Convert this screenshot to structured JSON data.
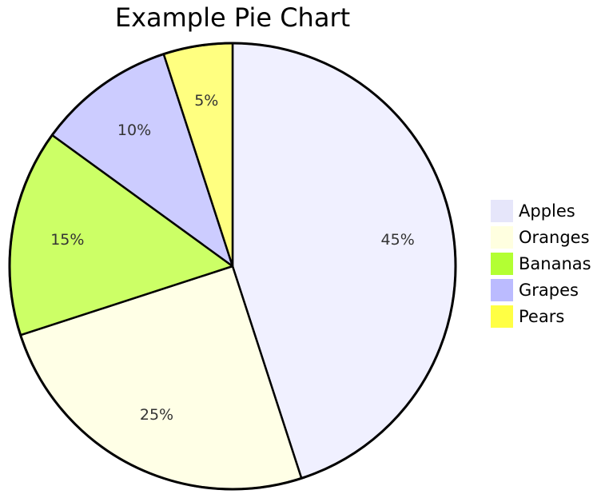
{
  "chart_data": {
    "type": "pie",
    "title": "Example Pie Chart",
    "slices": [
      {
        "label": "Apples",
        "value": 45,
        "display": "45%",
        "color": "#f0f0ff"
      },
      {
        "label": "Oranges",
        "value": 25,
        "display": "25%",
        "color": "#ffffe6"
      },
      {
        "label": "Bananas",
        "value": 15,
        "display": "15%",
        "color": "#ccff66"
      },
      {
        "label": "Grapes",
        "value": 10,
        "display": "10%",
        "color": "#ccccff"
      },
      {
        "label": "Pears",
        "value": 5,
        "display": "5%",
        "color": "#ffff80"
      }
    ],
    "legend": {
      "placement": "right",
      "items": [
        {
          "label": "Apples",
          "color": "#e6e6fa"
        },
        {
          "label": "Oranges",
          "color": "#ffffe0"
        },
        {
          "label": "Bananas",
          "color": "#b3ff33"
        },
        {
          "label": "Grapes",
          "color": "#bbbbff"
        },
        {
          "label": "Pears",
          "color": "#ffff44"
        }
      ]
    },
    "start_angle": "12 o'clock",
    "direction": "clockwise",
    "stroke_color": "#000000"
  }
}
